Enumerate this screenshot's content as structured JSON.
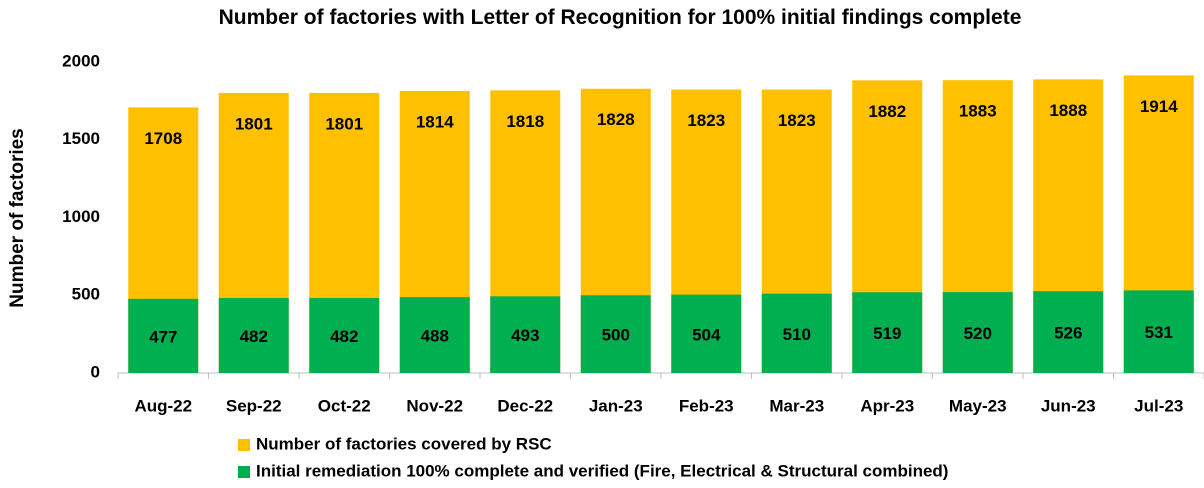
{
  "chart_data": {
    "type": "bar",
    "title": "Number of factories with Letter of Recognition for 100% initial findings complete",
    "y_label": "Number of factories",
    "categories": [
      "Aug-22",
      "Sep-22",
      "Oct-22",
      "Nov-22",
      "Dec-22",
      "Jan-23",
      "Feb-23",
      "Mar-23",
      "Apr-23",
      "May-23",
      "Jun-23",
      "Jul-23"
    ],
    "series": [
      {
        "name": "Number of factories covered by RSC",
        "color": "#FFC000",
        "values": [
          1708,
          1801,
          1801,
          1814,
          1818,
          1828,
          1823,
          1823,
          1882,
          1883,
          1888,
          1914
        ]
      },
      {
        "name": "Initial remediation 100% complete and verified (Fire, Electrical & Structural combined)",
        "color": "#00B050",
        "values": [
          477,
          482,
          482,
          488,
          493,
          500,
          504,
          510,
          519,
          520,
          526,
          531
        ]
      }
    ],
    "ylim": [
      0,
      2000
    ],
    "yticks": [
      0,
      500,
      1000,
      1500,
      2000
    ],
    "overlap": true
  }
}
